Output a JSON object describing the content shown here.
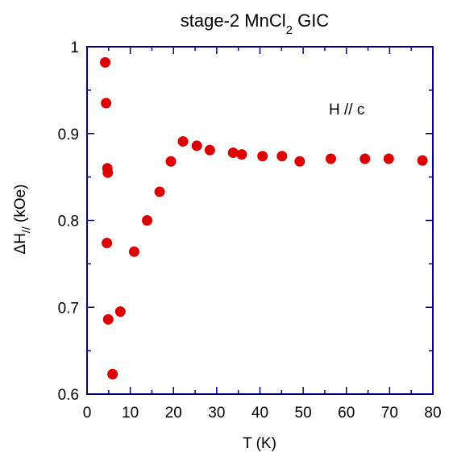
{
  "chart_data": {
    "type": "scatter",
    "title": {
      "main": "stage-2 MnCl",
      "subscript": "2",
      "suffix": " GIC"
    },
    "xlabel": "T (K)",
    "ylabel": {
      "main": "ΔH",
      "subscript": "//",
      "suffix": " (kOe)"
    },
    "annotation": "H // c",
    "xlim": [
      0,
      80
    ],
    "ylim": [
      0.6,
      1.0
    ],
    "x_ticks": [
      0,
      10,
      20,
      30,
      40,
      50,
      60,
      70,
      80
    ],
    "x_tick_labels": [
      "0",
      "10",
      "20",
      "30",
      "40",
      "50",
      "60",
      "70",
      "80"
    ],
    "y_ticks": [
      0.6,
      0.7,
      0.8,
      0.9,
      1.0
    ],
    "y_tick_labels": [
      "0.6",
      "0.7",
      "0.8",
      "0.9",
      "1"
    ],
    "grid": false,
    "marker_color": "#dd0000",
    "axis_color": "#00008b",
    "series": [
      {
        "x": [
          4.2,
          4.4,
          4.6,
          4.7,
          4.8,
          4.9,
          5.9,
          7.7,
          10.9,
          13.9,
          16.8,
          19.4,
          22.2,
          25.4,
          28.4,
          33.8,
          35.8,
          40.6,
          45.1,
          49.2,
          56.4,
          64.3,
          69.8,
          77.6
        ],
        "y": [
          0.982,
          0.935,
          0.774,
          0.86,
          0.855,
          0.686,
          0.623,
          0.695,
          0.764,
          0.8,
          0.833,
          0.868,
          0.891,
          0.886,
          0.881,
          0.878,
          0.876,
          0.874,
          0.874,
          0.868,
          0.871,
          0.871,
          0.871,
          0.869
        ]
      }
    ]
  }
}
